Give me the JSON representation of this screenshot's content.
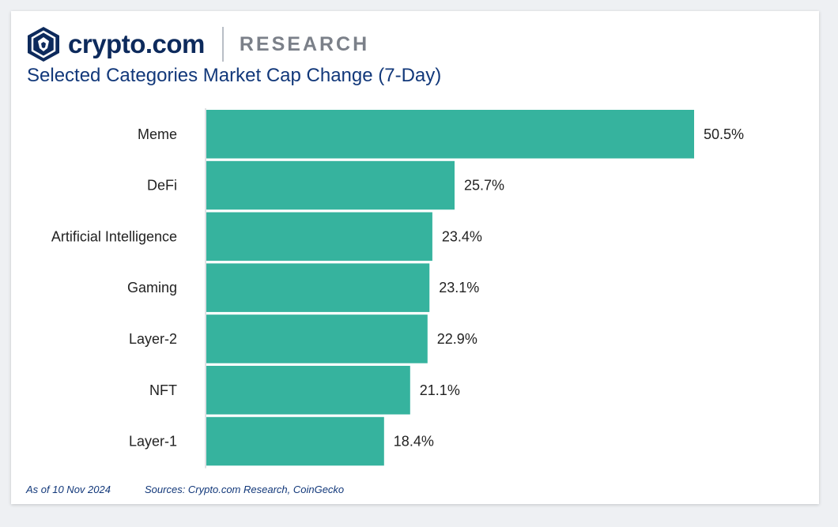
{
  "header": {
    "brand": "crypto.com",
    "section": "RESEARCH",
    "logo_icon": "crypto-com-lion-shield-icon"
  },
  "footer": {
    "as_of": "As of 10 Nov 2024",
    "sources": "Sources: Crypto.com Research, CoinGecko"
  },
  "colors": {
    "bar": "#36b39e",
    "title": "#12387a",
    "brand": "#0d2a5c"
  },
  "chart_data": {
    "type": "bar",
    "orientation": "horizontal",
    "title": "Selected Categories Market Cap Change (7-Day)",
    "categories": [
      "Meme",
      "DeFi",
      "Artificial Intelligence",
      "Gaming",
      "Layer-2",
      "NFT",
      "Layer-1"
    ],
    "values": [
      50.5,
      25.7,
      23.4,
      23.1,
      22.9,
      21.1,
      18.4
    ],
    "data_labels": [
      "50.5%",
      "25.7%",
      "23.4%",
      "23.1%",
      "22.9%",
      "21.1%",
      "18.4%"
    ],
    "xlabel": "",
    "ylabel": "",
    "xlim": [
      0,
      50.5
    ],
    "grid": false,
    "legend": "none"
  }
}
